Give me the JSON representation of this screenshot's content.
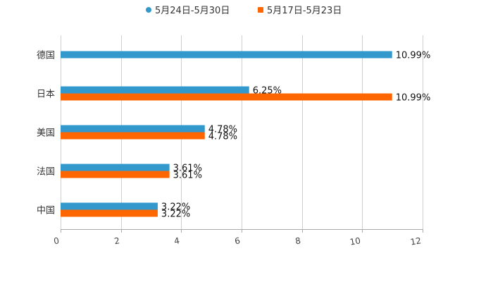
{
  "chart_data": {
    "type": "bar",
    "orientation": "horizontal",
    "categories": [
      "德国",
      "日本",
      "美国",
      "法国",
      "中国"
    ],
    "series": [
      {
        "name": "5月24日-5月30日",
        "color": "#3399cc",
        "marker": "circle",
        "values": [
          10.99,
          6.25,
          4.78,
          3.61,
          3.22
        ],
        "labels": [
          "10.99%",
          "6.25%",
          "4.78%",
          "3.61%",
          "3.22%"
        ]
      },
      {
        "name": "5月17日-5月23日",
        "color": "#ff6600",
        "marker": "square",
        "values": [
          null,
          10.99,
          4.78,
          3.61,
          3.22
        ],
        "labels": [
          null,
          "10.99%",
          "4.78%",
          "3.61%",
          "3.22%"
        ]
      }
    ],
    "xlim": [
      0,
      12
    ],
    "xticks": [
      0,
      2,
      4,
      6,
      8,
      10,
      12
    ],
    "xtick_labels": [
      "0",
      "2",
      "4",
      "6",
      "8",
      "10",
      "12"
    ],
    "grid": true,
    "legend_position": "top-center",
    "title": "",
    "xlabel": "",
    "ylabel": ""
  }
}
